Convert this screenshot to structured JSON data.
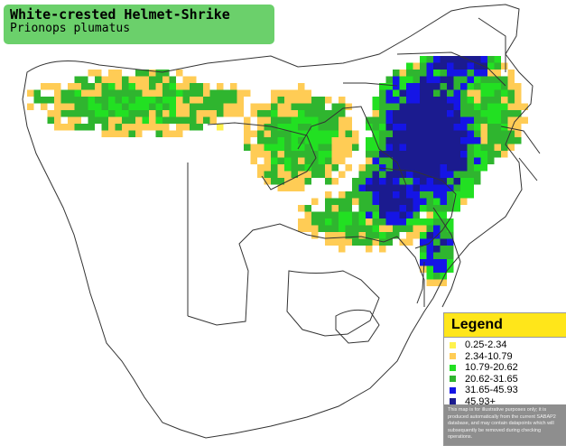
{
  "title": {
    "common_name": "White-crested Helmet-Shrike",
    "scientific_name": "Prionops plumatus"
  },
  "legend": {
    "heading": "Legend",
    "items": [
      {
        "label": "0.25-2.34",
        "color": "#fff24d"
      },
      {
        "label": "2.34-10.79",
        "color": "#ffcc55"
      },
      {
        "label": "10.79-20.62",
        "color": "#22e022"
      },
      {
        "label": "20.62-31.65",
        "color": "#2fb52f"
      },
      {
        "label": "31.65-45.93",
        "color": "#1515e6"
      },
      {
        "label": "45.93+",
        "color": "#1b1b8f"
      }
    ],
    "note": "This map is for illustrative purposes only; it is produced automatically from the current SABAP2 database, and may contain datapoints which will subsequently be removed during checking operations."
  },
  "colors": {
    "title_bg": "#6bd06b",
    "legend_header_bg": "#ffe61a",
    "note_bg": "#8e8e8e",
    "land": "#ffffff",
    "border": "#333333"
  }
}
